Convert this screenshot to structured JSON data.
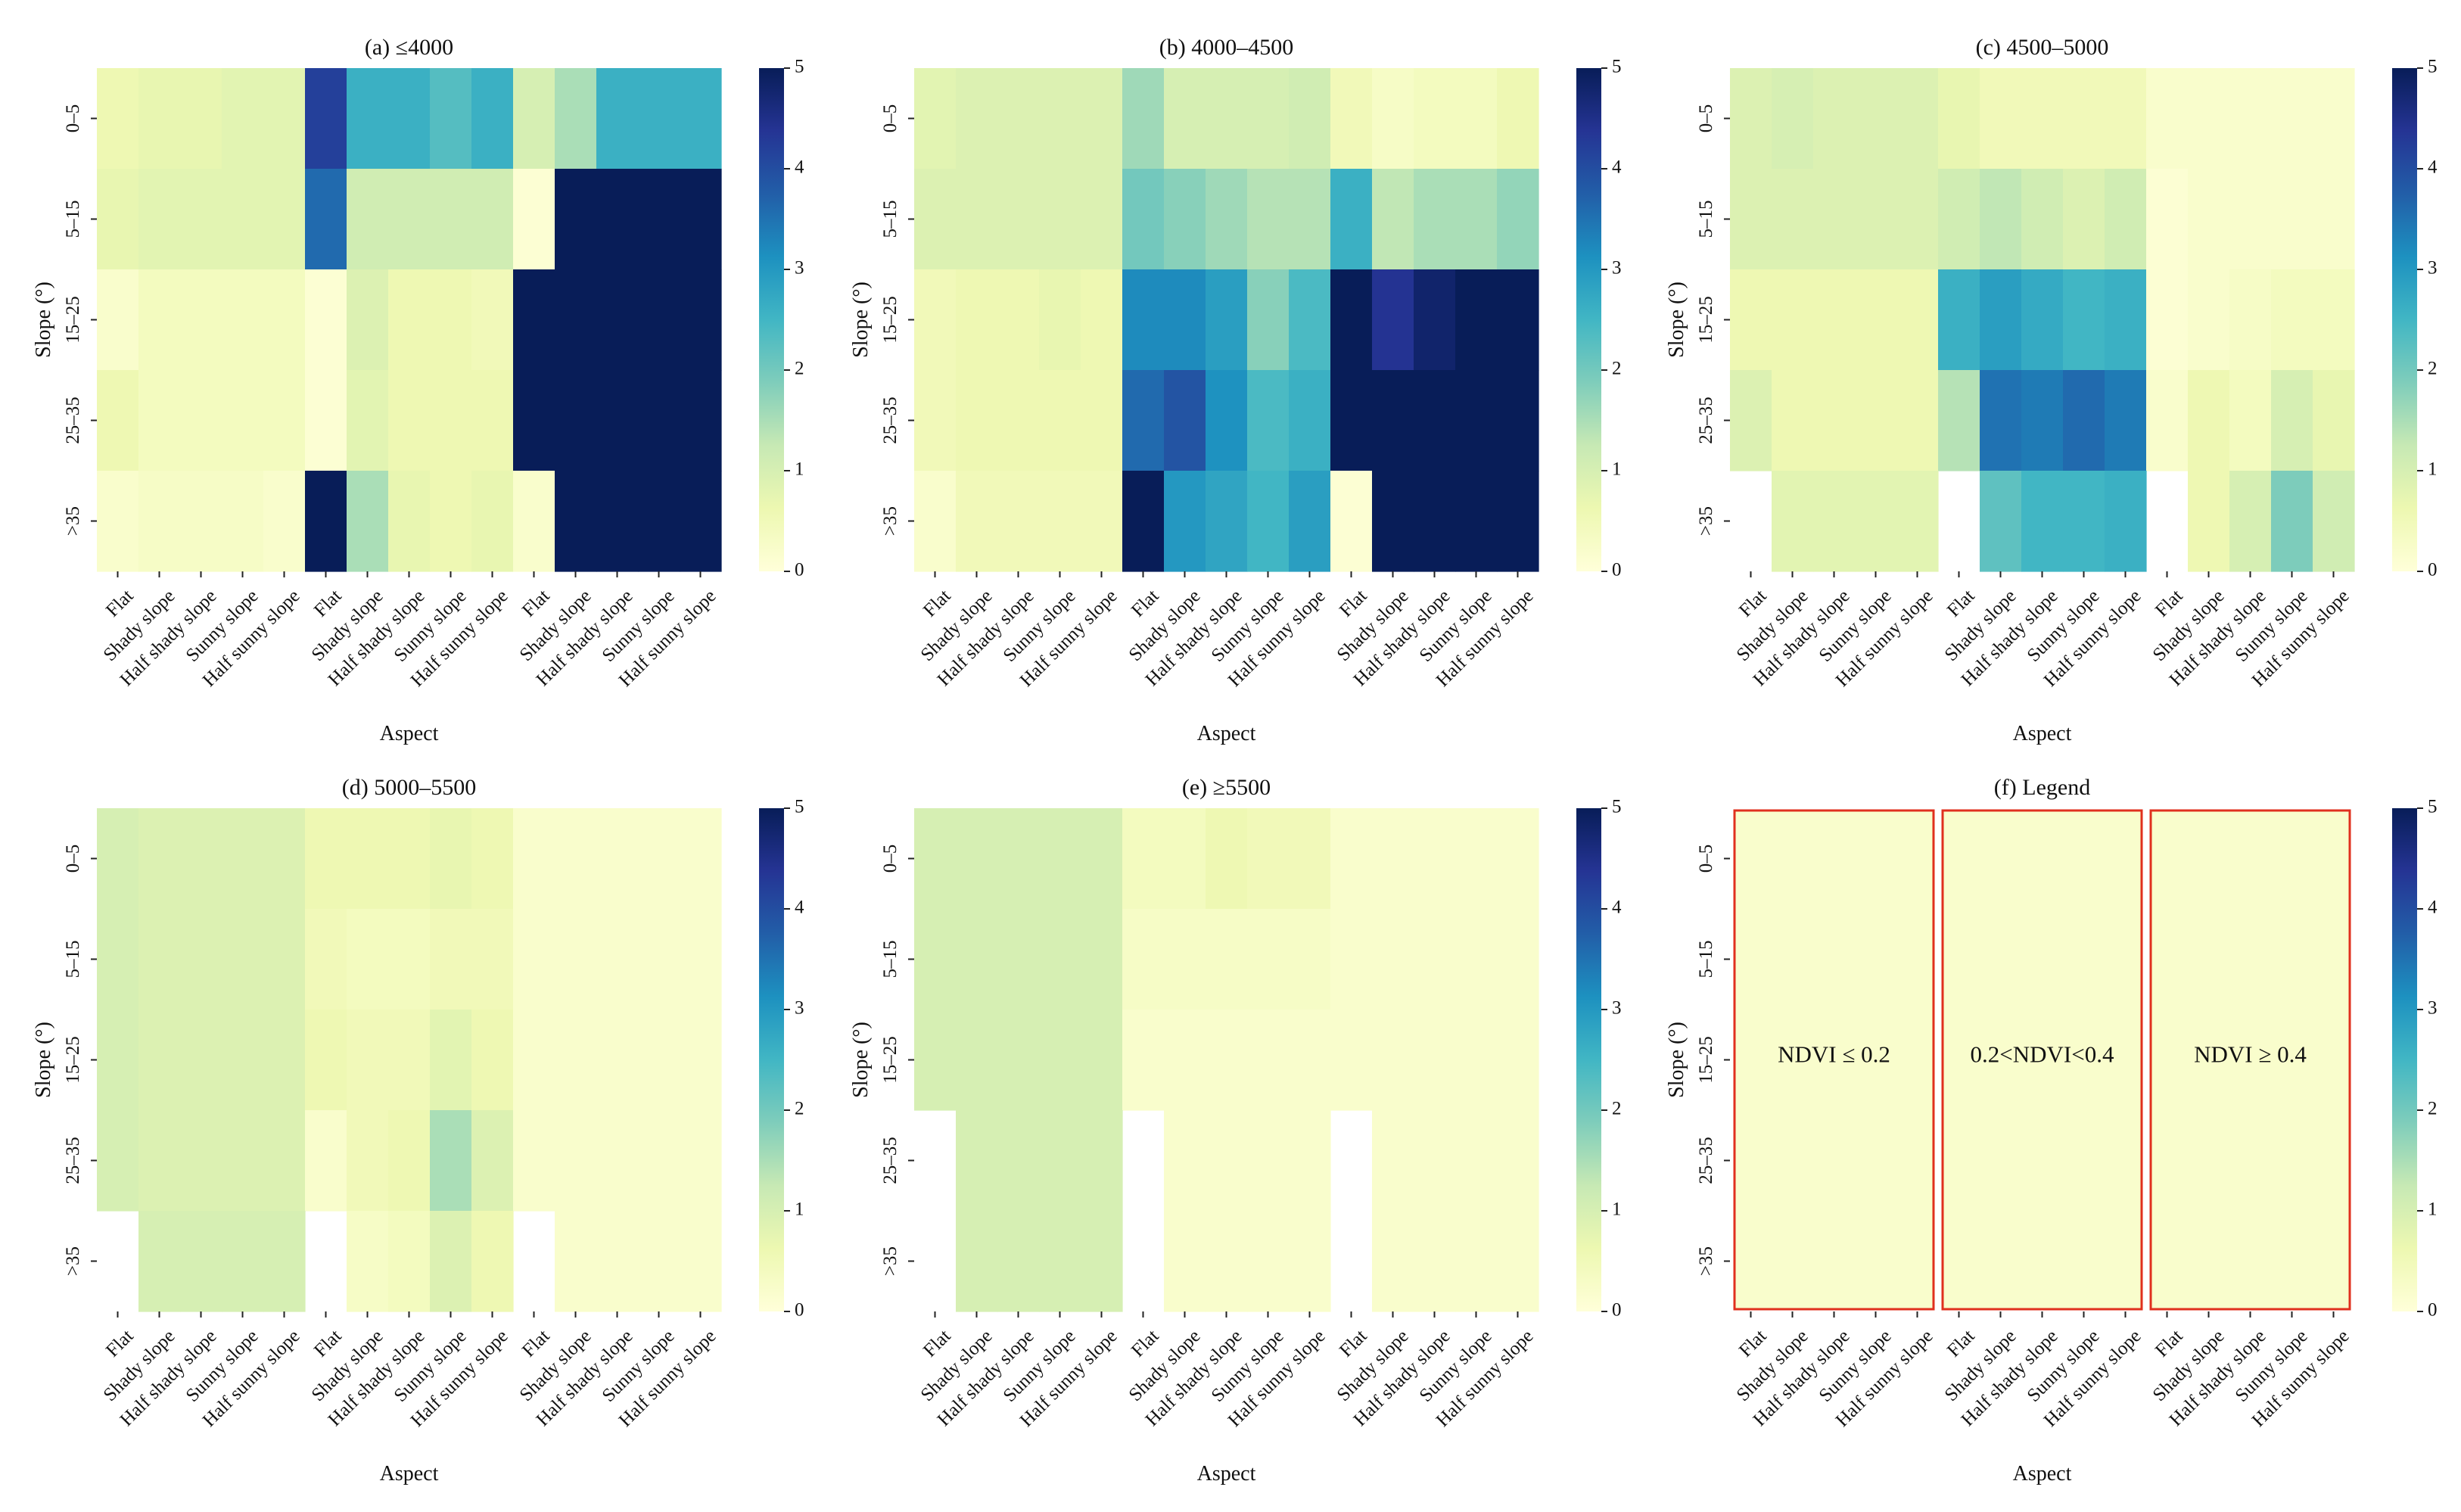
{
  "chart_data": {
    "type": "heatmap",
    "colormap": "YlGnBu",
    "colorbar": {
      "range": [
        0,
        5
      ],
      "ticks": [
        "0",
        "1",
        "2",
        "3",
        "4",
        "5"
      ]
    },
    "xlabel": "Aspect",
    "ylabel": "Slope (°)",
    "x_categories": [
      "Flat",
      "Shady slope",
      "Half shady slope",
      "Sunny slope",
      "Half sunny slope"
    ],
    "x_groups": [
      "NDVI ≤ 0.2",
      "0.2<NDVI<0.4",
      "NDVI ≥ 0.4"
    ],
    "y_categories": [
      "0–5",
      "5–15",
      "15–25",
      "25–35",
      ">35"
    ],
    "panels": [
      {
        "title": "(a) ≤4000",
        "values": [
          [
            0.6,
            0.7,
            0.7,
            0.8,
            0.8,
            4.2,
            2.6,
            2.6,
            2.3,
            2.6,
            1.0,
            1.5,
            2.6,
            2.6,
            2.6
          ],
          [
            0.7,
            0.8,
            0.8,
            0.8,
            0.8,
            3.6,
            1.1,
            1.1,
            1.1,
            1.1,
            0.1,
            5.0,
            5.0,
            5.0,
            5.0
          ],
          [
            0.2,
            0.4,
            0.4,
            0.4,
            0.4,
            0.1,
            0.9,
            0.6,
            0.6,
            0.5,
            5.0,
            5.0,
            5.0,
            5.0,
            5.0
          ],
          [
            0.6,
            0.4,
            0.4,
            0.4,
            0.4,
            0.1,
            0.8,
            0.6,
            0.6,
            0.6,
            5.0,
            5.0,
            5.0,
            5.0,
            5.0
          ],
          [
            0.2,
            0.3,
            0.3,
            0.3,
            0.2,
            5.0,
            1.5,
            0.7,
            0.6,
            0.7,
            0.2,
            5.0,
            5.0,
            5.0,
            5.0
          ]
        ]
      },
      {
        "title": "(b) 4000–4500",
        "values": [
          [
            0.8,
            0.9,
            0.9,
            0.9,
            0.9,
            1.6,
            1.0,
            1.0,
            1.0,
            1.1,
            0.5,
            0.3,
            0.4,
            0.4,
            0.6
          ],
          [
            0.9,
            0.9,
            0.9,
            0.9,
            0.9,
            2.0,
            1.8,
            1.6,
            1.4,
            1.4,
            2.6,
            1.3,
            1.5,
            1.5,
            1.7
          ],
          [
            0.5,
            0.6,
            0.6,
            0.7,
            0.6,
            3.2,
            3.2,
            2.9,
            1.8,
            2.4,
            5.0,
            4.4,
            4.8,
            5.0,
            5.0
          ],
          [
            0.5,
            0.6,
            0.6,
            0.6,
            0.6,
            3.6,
            3.9,
            3.1,
            2.4,
            2.6,
            5.0,
            5.0,
            5.0,
            5.0,
            5.0
          ],
          [
            0.2,
            0.5,
            0.5,
            0.5,
            0.5,
            5.0,
            3.0,
            2.8,
            2.5,
            2.9,
            0.1,
            5.0,
            5.0,
            5.0,
            5.0
          ]
        ]
      },
      {
        "title": "(c) 4500–5000",
        "values": [
          [
            0.9,
            1.0,
            0.9,
            0.9,
            0.9,
            0.7,
            0.5,
            0.5,
            0.5,
            0.5,
            0.2,
            0.2,
            0.2,
            0.2,
            0.2
          ],
          [
            0.9,
            0.9,
            0.9,
            0.9,
            0.9,
            1.1,
            1.3,
            1.1,
            0.9,
            1.1,
            0.1,
            0.2,
            0.2,
            0.2,
            0.2
          ],
          [
            0.6,
            0.6,
            0.6,
            0.6,
            0.6,
            2.6,
            2.9,
            2.7,
            2.5,
            2.6,
            0.1,
            0.2,
            0.3,
            0.4,
            0.4
          ],
          [
            0.9,
            0.6,
            0.6,
            0.6,
            0.6,
            1.4,
            3.5,
            3.4,
            3.6,
            3.4,
            0.2,
            0.6,
            0.4,
            1.0,
            0.7
          ],
          [
            null,
            0.8,
            0.8,
            0.8,
            0.8,
            null,
            2.2,
            2.5,
            2.5,
            2.6,
            null,
            0.6,
            1.0,
            1.9,
            1.1
          ]
        ]
      },
      {
        "title": "(d) 5000–5500",
        "values": [
          [
            1.0,
            0.9,
            0.9,
            0.9,
            0.9,
            0.6,
            0.6,
            0.6,
            0.7,
            0.6,
            0.2,
            0.2,
            0.2,
            0.2,
            0.2
          ],
          [
            1.0,
            0.9,
            0.9,
            0.9,
            0.9,
            0.5,
            0.4,
            0.4,
            0.5,
            0.5,
            0.2,
            0.2,
            0.2,
            0.2,
            0.2
          ],
          [
            1.0,
            0.9,
            0.9,
            0.9,
            0.9,
            0.6,
            0.5,
            0.5,
            0.8,
            0.6,
            0.2,
            0.2,
            0.2,
            0.2,
            0.2
          ],
          [
            1.0,
            0.9,
            0.9,
            0.9,
            0.9,
            0.2,
            0.5,
            0.6,
            1.5,
            0.9,
            0.2,
            0.2,
            0.2,
            0.2,
            0.2
          ],
          [
            null,
            1.0,
            1.0,
            1.0,
            1.0,
            null,
            0.3,
            0.4,
            0.9,
            0.6,
            null,
            0.2,
            0.2,
            0.2,
            0.2
          ]
        ]
      },
      {
        "title": "(e) ≥5500",
        "values": [
          [
            1.0,
            1.0,
            1.0,
            1.0,
            1.0,
            0.4,
            0.4,
            0.6,
            0.5,
            0.5,
            0.2,
            0.2,
            0.2,
            0.2,
            0.2
          ],
          [
            1.0,
            1.0,
            1.0,
            1.0,
            1.0,
            0.3,
            0.3,
            0.3,
            0.3,
            0.3,
            0.2,
            0.2,
            0.2,
            0.2,
            0.2
          ],
          [
            1.0,
            1.0,
            1.0,
            1.0,
            1.0,
            0.2,
            0.2,
            0.2,
            0.2,
            0.2,
            0.2,
            0.2,
            0.2,
            0.2,
            0.2
          ],
          [
            null,
            1.0,
            1.0,
            1.0,
            1.0,
            null,
            0.2,
            0.2,
            0.2,
            0.2,
            null,
            0.2,
            0.2,
            0.2,
            0.2
          ],
          [
            null,
            1.0,
            1.0,
            1.0,
            1.0,
            null,
            0.2,
            0.2,
            0.2,
            0.2,
            null,
            0.2,
            0.2,
            0.2,
            0.2
          ]
        ]
      }
    ],
    "legend_panel": {
      "title": "(f) Legend",
      "fill_value": 0.2,
      "box_color": "#e0301e",
      "boxes": [
        "NDVI ≤ 0.2",
        "0.2<NDVI<0.4",
        "NDVI ≥ 0.4"
      ]
    }
  }
}
